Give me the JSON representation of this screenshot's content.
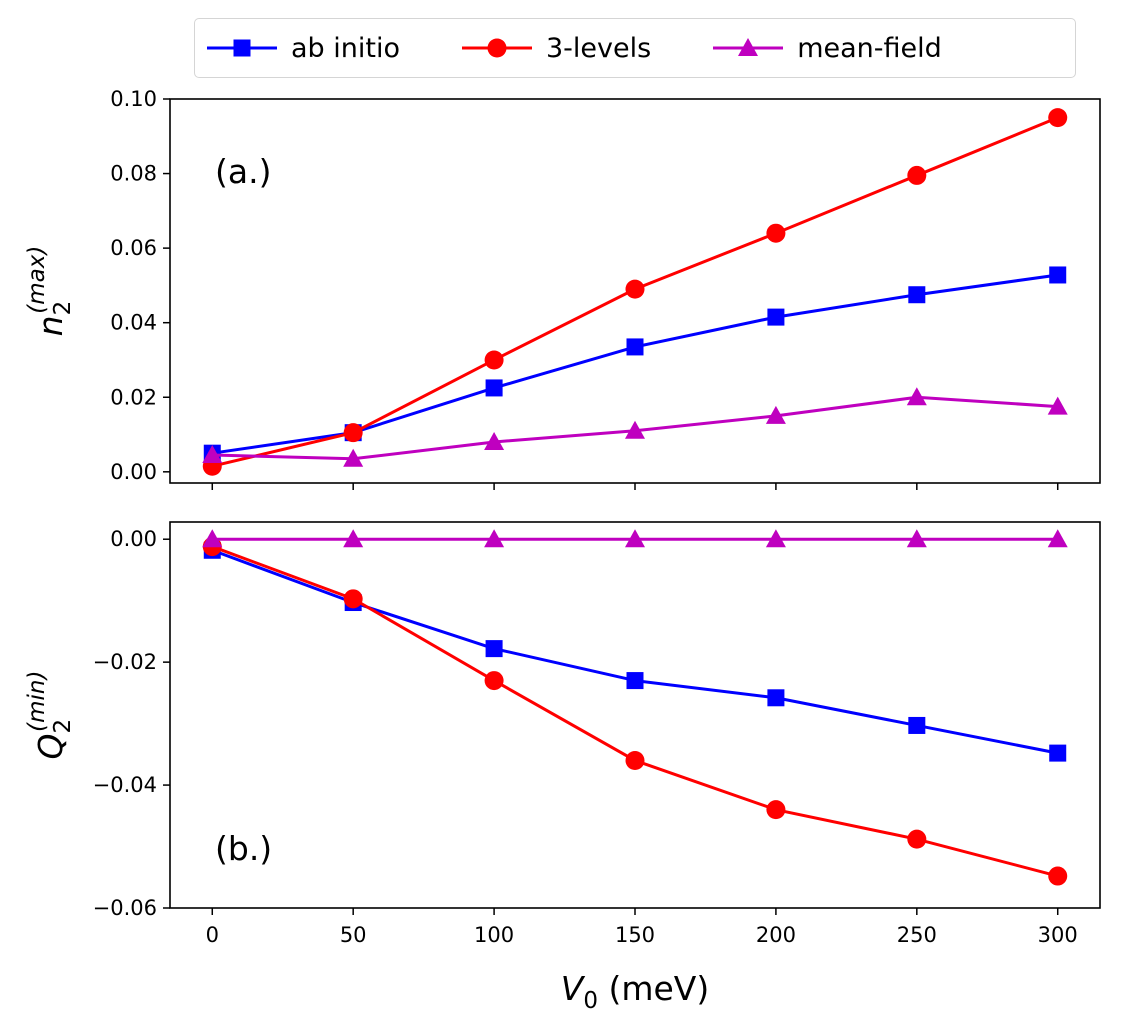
{
  "chart_data": [
    {
      "type": "line",
      "id": "top",
      "panel_label": "(a.)",
      "ylabel_main": "n",
      "ylabel_sub": "2",
      "ylabel_sup": "(max)",
      "xlabel": "",
      "x": [
        0,
        50,
        100,
        150,
        200,
        250,
        300
      ],
      "xlim": [
        -15,
        315
      ],
      "ylim": [
        -0.003,
        0.1
      ],
      "yticks": [
        0.0,
        0.02,
        0.04,
        0.06,
        0.08,
        0.1
      ],
      "ytick_labels": [
        "0.00",
        "0.02",
        "0.04",
        "0.06",
        "0.08",
        "0.10"
      ],
      "xtick_labels_visible": false,
      "series": [
        {
          "name": "ab initio",
          "color": "#0000ff",
          "marker": "square",
          "values": [
            0.005,
            0.0105,
            0.0225,
            0.0335,
            0.0415,
            0.0475,
            0.0528
          ]
        },
        {
          "name": "3-levels",
          "color": "#ff0000",
          "marker": "circle",
          "values": [
            0.0015,
            0.0105,
            0.03,
            0.049,
            0.064,
            0.0795,
            0.095
          ]
        },
        {
          "name": "mean-field",
          "color": "#bf00bf",
          "marker": "triangle",
          "values": [
            0.0045,
            0.0035,
            0.008,
            0.011,
            0.015,
            0.02,
            0.0175
          ]
        }
      ]
    },
    {
      "type": "line",
      "id": "bottom",
      "panel_label": "(b.)",
      "ylabel_main": "Q",
      "ylabel_sub": "2",
      "ylabel_sup": "(min)",
      "xlabel_main": "V",
      "xlabel_sub": "0",
      "xlabel_unit": " (meV)",
      "x": [
        0,
        50,
        100,
        150,
        200,
        250,
        300
      ],
      "xlim": [
        -15,
        315
      ],
      "ylim": [
        -0.06,
        0.0028
      ],
      "yticks": [
        0.0,
        -0.02,
        -0.04,
        -0.06
      ],
      "ytick_labels": [
        "0.00",
        "−0.02",
        "−0.04",
        "−0.06"
      ],
      "xticks": [
        0,
        50,
        100,
        150,
        200,
        250,
        300
      ],
      "xtick_labels": [
        "0",
        "50",
        "100",
        "150",
        "200",
        "250",
        "300"
      ],
      "xtick_labels_visible": true,
      "series": [
        {
          "name": "ab initio",
          "color": "#0000ff",
          "marker": "square",
          "values": [
            -0.0018,
            -0.0103,
            -0.0178,
            -0.023,
            -0.0258,
            -0.0303,
            -0.0348
          ]
        },
        {
          "name": "3-levels",
          "color": "#ff0000",
          "marker": "circle",
          "values": [
            -0.0012,
            -0.0097,
            -0.023,
            -0.036,
            -0.044,
            -0.0488,
            -0.0548
          ]
        },
        {
          "name": "mean-field",
          "color": "#bf00bf",
          "marker": "triangle",
          "values": [
            0.0,
            0.0,
            0.0,
            0.0,
            0.0,
            0.0,
            0.0
          ]
        }
      ]
    }
  ],
  "legend": {
    "placement": "top-center",
    "entries": [
      {
        "label": "ab initio",
        "color": "#0000ff",
        "marker": "square"
      },
      {
        "label": "3-levels",
        "color": "#ff0000",
        "marker": "circle"
      },
      {
        "label": "mean-field",
        "color": "#bf00bf",
        "marker": "triangle"
      }
    ]
  }
}
